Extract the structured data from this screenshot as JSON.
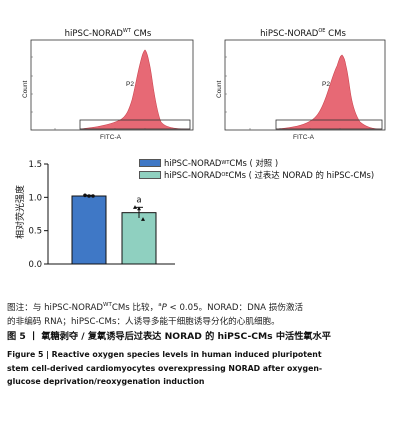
{
  "histograms": [
    {
      "title_main": "hiPSC-NORAD",
      "title_sup": "WT",
      "title_suffix": " CMs",
      "ylabel": "Count",
      "xlabel": "FITC-A",
      "gate_label": "P2"
    },
    {
      "title_main": "hiPSC-NORAD",
      "title_sup": "OE",
      "title_suffix": " CMs",
      "ylabel": "Count",
      "xlabel": "FITC-A",
      "gate_label": "P2"
    }
  ],
  "legend": [
    {
      "main": "hiPSC-NORAD ",
      "sup": "WT",
      "suffix": " CMs ( 对照 )",
      "color": "#3f78c6"
    },
    {
      "main": "hiPSC-NORAD",
      "sup": "OE",
      "suffix": " CMs ( 过表达 NORAD 的 hiPSC-CMs)",
      "color": "#8fd0c0"
    }
  ],
  "chart_data": {
    "type": "bar",
    "categories": [
      "hiPSC-NORAD WT CMs",
      "hiPSC-NORAD OE CMs"
    ],
    "values": [
      1.02,
      0.77
    ],
    "errors": [
      0.01,
      0.08
    ],
    "points": [
      [
        1.03,
        1.02,
        1.02
      ],
      [
        0.85,
        0.83,
        0.67
      ]
    ],
    "annotations": [
      "",
      "a"
    ],
    "ylabel": "相对荧光强度",
    "ylim": [
      0,
      1.5
    ],
    "yticks": [
      "0.0",
      "0.5",
      "1.0",
      "1.5"
    ],
    "colors": [
      "#3f78c6",
      "#8fd0c0"
    ]
  },
  "caption": {
    "line1_a": "图注：与 hiPSC-NORAD",
    "line1_sup": "WT",
    "line1_b": "CMs 比较，",
    "line1_sup2": "a",
    "line1_p": "P",
    "line1_c": " < 0.05。NORAD：DNA 损伤激活",
    "line2": "的非编码 RNA；hiPSC-CMs：人诱导多能干细胞诱导分化的心肌细胞。"
  },
  "figure": {
    "zh_title": "图 5  丨 氧糖剥夺 / 复氧诱导后过表达 NORAD 的 hiPSC-CMs 中活性氧水平",
    "en_line1": "Figure 5   |   Reactive oxygen species levels in human induced pluripotent",
    "en_line2": "stem cell-derived cardiomyocytes overexpressing NORAD after oxygen-",
    "en_line3": "glucose deprivation/reoxygenation induction"
  }
}
